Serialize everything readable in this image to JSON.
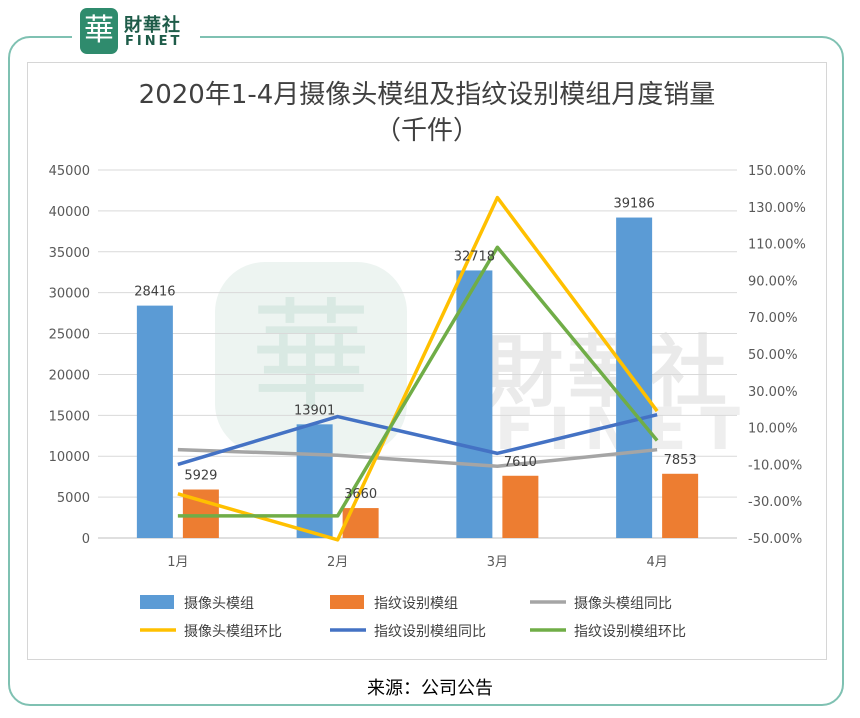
{
  "header": {
    "logo_glyph": "華",
    "logo_cn": "財華社",
    "logo_en": "FINET"
  },
  "watermark": {
    "cn": "財華社",
    "en": "FINET",
    "seal_glyph": "華"
  },
  "chart_data": {
    "type": "bar",
    "title": "2020年1-4月摄像头模组及指纹设别模组月度销量",
    "subtitle": "（千件）",
    "categories": [
      "1月",
      "2月",
      "3月",
      "4月"
    ],
    "y_left": {
      "min": 0,
      "max": 45000,
      "ticks": [
        "0",
        "5000",
        "10000",
        "15000",
        "20000",
        "25000",
        "30000",
        "35000",
        "40000",
        "45000"
      ]
    },
    "y_right": {
      "min": -50,
      "max": 150,
      "ticks": [
        "-50.00%",
        "-30.00%",
        "-10.00%",
        "10.00%",
        "30.00%",
        "50.00%",
        "70.00%",
        "90.00%",
        "110.00%",
        "130.00%",
        "150.00%"
      ]
    },
    "series": [
      {
        "name": "摄像头模组",
        "kind": "bar",
        "axis": "left",
        "color": "#5b9bd5",
        "values": [
          28416,
          13901,
          32718,
          39186
        ],
        "labels": [
          "28416",
          "13901",
          "32718",
          "39186"
        ]
      },
      {
        "name": "指纹设别模组",
        "kind": "bar",
        "axis": "left",
        "color": "#ed7d31",
        "values": [
          5929,
          3660,
          7610,
          7853
        ],
        "labels": [
          "5929",
          "3660",
          "7610",
          "7853"
        ]
      },
      {
        "name": "摄像头模组同比",
        "kind": "line",
        "axis": "right",
        "color": "#a5a5a5",
        "values": [
          -2,
          -5,
          -11,
          -2
        ]
      },
      {
        "name": "摄像头模组环比",
        "kind": "line",
        "axis": "right",
        "color": "#ffc000",
        "values": [
          -26,
          -51,
          135,
          19
        ]
      },
      {
        "name": "指纹设别模组同比",
        "kind": "line",
        "axis": "right",
        "color": "#4472c4",
        "values": [
          -10,
          16,
          -4,
          17
        ]
      },
      {
        "name": "指纹设别模组环比",
        "kind": "line",
        "axis": "right",
        "color": "#70ad47",
        "values": [
          -38,
          -38,
          108,
          3
        ]
      }
    ],
    "legend_position": "bottom",
    "grid": true
  },
  "source": "来源：公司公告"
}
